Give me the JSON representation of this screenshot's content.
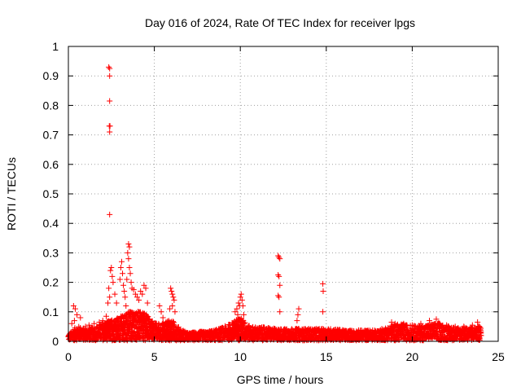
{
  "chart_data": {
    "type": "scatter",
    "title": "Day 016 of 2024, Rate Of TEC Index for receiver lpgs",
    "xlabel": "GPS time / hours",
    "ylabel": "ROTI / TECUs",
    "xlim": [
      0,
      25
    ],
    "ylim": [
      0,
      1
    ],
    "x_ticks": [
      0,
      5,
      10,
      15,
      20,
      25
    ],
    "x_tick_labels": [
      "0",
      "5",
      "10",
      "15",
      "20",
      "25"
    ],
    "y_ticks": [
      0,
      0.1,
      0.2,
      0.3,
      0.4,
      0.5,
      0.6,
      0.7,
      0.8,
      0.9,
      1
    ],
    "y_tick_labels": [
      "0",
      "0.1",
      "0.2",
      "0.3",
      "0.4",
      "0.5",
      "0.6",
      "0.7",
      "0.8",
      "0.9",
      "1"
    ],
    "grid": true,
    "marker": "+",
    "color": "#ff0000",
    "series": [
      {
        "name": "ROTI",
        "points": [
          [
            2.35,
            0.93
          ],
          [
            2.4,
            0.925
          ],
          [
            2.4,
            0.9
          ],
          [
            2.4,
            0.815
          ],
          [
            2.38,
            0.73
          ],
          [
            2.42,
            0.73
          ],
          [
            2.4,
            0.71
          ],
          [
            2.4,
            0.43
          ],
          [
            2.5,
            0.25
          ],
          [
            2.45,
            0.24
          ],
          [
            2.55,
            0.22
          ],
          [
            2.6,
            0.2
          ],
          [
            2.35,
            0.18
          ],
          [
            2.3,
            0.13
          ],
          [
            2.4,
            0.15
          ],
          [
            3.1,
            0.27
          ],
          [
            3.05,
            0.25
          ],
          [
            3.15,
            0.23
          ],
          [
            3.0,
            0.21
          ],
          [
            3.2,
            0.19
          ],
          [
            3.25,
            0.17
          ],
          [
            3.5,
            0.33
          ],
          [
            3.55,
            0.32
          ],
          [
            3.45,
            0.3
          ],
          [
            3.5,
            0.28
          ],
          [
            3.55,
            0.25
          ],
          [
            3.6,
            0.23
          ],
          [
            3.4,
            0.21
          ],
          [
            3.65,
            0.2
          ],
          [
            3.7,
            0.18
          ],
          [
            3.8,
            0.175
          ],
          [
            3.9,
            0.16
          ],
          [
            4.0,
            0.15
          ],
          [
            4.1,
            0.14
          ],
          [
            4.2,
            0.17
          ],
          [
            4.3,
            0.16
          ],
          [
            4.4,
            0.19
          ],
          [
            4.5,
            0.18
          ],
          [
            4.6,
            0.13
          ],
          [
            3.3,
            0.15
          ],
          [
            3.35,
            0.12
          ],
          [
            2.7,
            0.16
          ],
          [
            2.8,
            0.13
          ],
          [
            5.3,
            0.12
          ],
          [
            5.4,
            0.1
          ],
          [
            5.5,
            0.08
          ],
          [
            5.95,
            0.18
          ],
          [
            6.0,
            0.17
          ],
          [
            6.05,
            0.16
          ],
          [
            6.1,
            0.15
          ],
          [
            6.15,
            0.14
          ],
          [
            6.05,
            0.12
          ],
          [
            5.9,
            0.11
          ],
          [
            6.2,
            0.1
          ],
          [
            0.3,
            0.12
          ],
          [
            0.4,
            0.11
          ],
          [
            0.5,
            0.09
          ],
          [
            0.7,
            0.08
          ],
          [
            0.35,
            0.07
          ],
          [
            0.2,
            0.06
          ],
          [
            1.0,
            0.05
          ],
          [
            1.2,
            0.055
          ],
          [
            1.5,
            0.06
          ],
          [
            1.8,
            0.065
          ],
          [
            2.0,
            0.07
          ],
          [
            2.2,
            0.085
          ],
          [
            9.7,
            0.1
          ],
          [
            9.8,
            0.11
          ],
          [
            9.9,
            0.13
          ],
          [
            10.0,
            0.15
          ],
          [
            10.05,
            0.16
          ],
          [
            10.1,
            0.14
          ],
          [
            10.15,
            0.12
          ],
          [
            9.95,
            0.12
          ],
          [
            9.85,
            0.09
          ],
          [
            10.2,
            0.09
          ],
          [
            12.2,
            0.29
          ],
          [
            12.25,
            0.285
          ],
          [
            12.3,
            0.28
          ],
          [
            12.2,
            0.225
          ],
          [
            12.25,
            0.22
          ],
          [
            12.3,
            0.19
          ],
          [
            12.2,
            0.155
          ],
          [
            12.25,
            0.15
          ],
          [
            12.3,
            0.1
          ],
          [
            13.4,
            0.11
          ],
          [
            13.35,
            0.09
          ],
          [
            13.3,
            0.07
          ],
          [
            14.8,
            0.195
          ],
          [
            14.82,
            0.17
          ],
          [
            14.8,
            0.1
          ],
          [
            18.8,
            0.065
          ],
          [
            19.0,
            0.06
          ],
          [
            19.5,
            0.06
          ],
          [
            20.0,
            0.055
          ],
          [
            20.5,
            0.06
          ],
          [
            21.0,
            0.07
          ],
          [
            21.4,
            0.075
          ],
          [
            21.6,
            0.06
          ],
          [
            22.0,
            0.055
          ],
          [
            22.5,
            0.05
          ],
          [
            23.0,
            0.05
          ],
          [
            23.5,
            0.055
          ],
          [
            23.8,
            0.065
          ]
        ],
        "band": [
          [
            0.0,
            0.02
          ],
          [
            0.5,
            0.05
          ],
          [
            1.0,
            0.04
          ],
          [
            1.5,
            0.045
          ],
          [
            2.0,
            0.06
          ],
          [
            2.5,
            0.07
          ],
          [
            3.0,
            0.08
          ],
          [
            3.5,
            0.1
          ],
          [
            4.0,
            0.1
          ],
          [
            4.5,
            0.09
          ],
          [
            5.0,
            0.06
          ],
          [
            5.5,
            0.06
          ],
          [
            6.0,
            0.07
          ],
          [
            6.5,
            0.04
          ],
          [
            7.0,
            0.025
          ],
          [
            7.5,
            0.03
          ],
          [
            8.0,
            0.03
          ],
          [
            8.5,
            0.035
          ],
          [
            9.0,
            0.045
          ],
          [
            9.5,
            0.06
          ],
          [
            10.0,
            0.08
          ],
          [
            10.5,
            0.05
          ],
          [
            11.0,
            0.045
          ],
          [
            11.5,
            0.045
          ],
          [
            12.0,
            0.04
          ],
          [
            12.5,
            0.04
          ],
          [
            13.0,
            0.04
          ],
          [
            13.5,
            0.04
          ],
          [
            14.0,
            0.04
          ],
          [
            14.5,
            0.04
          ],
          [
            15.0,
            0.04
          ],
          [
            15.5,
            0.04
          ],
          [
            16.0,
            0.035
          ],
          [
            16.5,
            0.035
          ],
          [
            17.0,
            0.035
          ],
          [
            17.5,
            0.035
          ],
          [
            18.0,
            0.035
          ],
          [
            18.5,
            0.045
          ],
          [
            19.0,
            0.055
          ],
          [
            19.5,
            0.055
          ],
          [
            20.0,
            0.05
          ],
          [
            20.5,
            0.05
          ],
          [
            21.0,
            0.055
          ],
          [
            21.5,
            0.06
          ],
          [
            22.0,
            0.05
          ],
          [
            22.5,
            0.045
          ],
          [
            23.0,
            0.045
          ],
          [
            23.5,
            0.045
          ],
          [
            24.0,
            0.05
          ]
        ]
      }
    ]
  }
}
